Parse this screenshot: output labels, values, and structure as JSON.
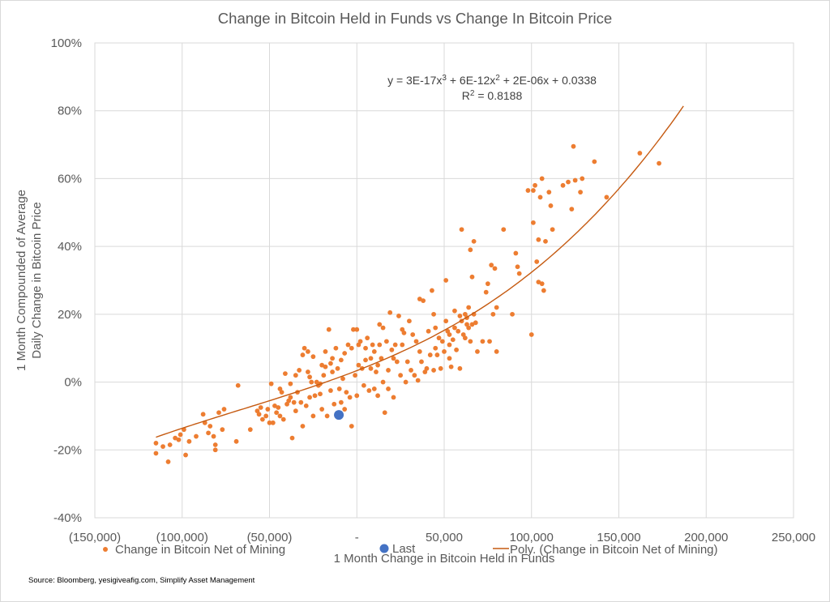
{
  "chart_data": {
    "type": "scatter",
    "title": "Change in Bitcoin Held in Funds vs Change In Bitcoin Price",
    "xlabel": "1 Month Change in Bitcoin Held in Funds",
    "ylabel_lines": [
      "1 Month Compounded of Average",
      "Daily Change in Bitcoin Price"
    ],
    "xlim": [
      -150000,
      250000
    ],
    "ylim": [
      -0.4,
      1.0
    ],
    "grid": true,
    "x_ticks": [
      {
        "value": -150000,
        "label": "(150,000)"
      },
      {
        "value": -100000,
        "label": "(100,000)"
      },
      {
        "value": -50000,
        "label": "(50,000)"
      },
      {
        "value": 0,
        "label": "-"
      },
      {
        "value": 50000,
        "label": "50,000"
      },
      {
        "value": 100000,
        "label": "100,000"
      },
      {
        "value": 150000,
        "label": "150,000"
      },
      {
        "value": 200000,
        "label": "200,000"
      },
      {
        "value": 250000,
        "label": "250,000"
      }
    ],
    "y_ticks": [
      {
        "value": 1.0,
        "label": "100%"
      },
      {
        "value": 0.8,
        "label": "80%"
      },
      {
        "value": 0.6,
        "label": "60%"
      },
      {
        "value": 0.4,
        "label": "40%"
      },
      {
        "value": 0.2,
        "label": "20%"
      },
      {
        "value": 0.0,
        "label": "0%"
      },
      {
        "value": -0.2,
        "label": "-20%"
      },
      {
        "value": -0.4,
        "label": "-40%"
      }
    ],
    "colors": {
      "series": "#ed7d31",
      "last": "#4472c4",
      "trend": "#c55a11"
    },
    "legend": {
      "placement": "bottom",
      "entries": [
        {
          "label": "Change in Bitcoin Net of Mining",
          "type": "marker",
          "color": "#ed7d31"
        },
        {
          "label": "Last",
          "type": "marker",
          "color": "#4472c4"
        },
        {
          "label": "Poly. (Change in Bitcoin Net of Mining)",
          "type": "line",
          "color": "#c55a11"
        }
      ]
    },
    "trendline": {
      "type": "poly3",
      "coefficients": [
        3e-17,
        6e-12,
        2e-06,
        0.0338
      ],
      "x_range": [
        -115000,
        187000
      ],
      "equation_label": "y = 3E-17x",
      "equation_parts": [
        "y = 3E-17x",
        "3",
        " + 6E-12x",
        "2",
        " + 2E-06x + 0.0338"
      ],
      "r2_parts": [
        "R",
        "2",
        " = 0.8188"
      ]
    },
    "last_point": {
      "name": "Last",
      "x": -10300,
      "y": -0.097
    },
    "series": [
      {
        "name": "Change in Bitcoin Net of Mining",
        "points": [
          [
            -115000,
            -0.18
          ],
          [
            -115000,
            -0.21
          ],
          [
            -111000,
            -0.19
          ],
          [
            -108000,
            -0.235
          ],
          [
            -107000,
            -0.185
          ],
          [
            -104000,
            -0.165
          ],
          [
            -102000,
            -0.17
          ],
          [
            -101000,
            -0.155
          ],
          [
            -99000,
            -0.14
          ],
          [
            -98000,
            -0.215
          ],
          [
            -96000,
            -0.175
          ],
          [
            -92000,
            -0.16
          ],
          [
            -88000,
            -0.095
          ],
          [
            -87000,
            -0.12
          ],
          [
            -85000,
            -0.15
          ],
          [
            -84000,
            -0.13
          ],
          [
            -82000,
            -0.16
          ],
          [
            -81000,
            -0.185
          ],
          [
            -81000,
            -0.2
          ],
          [
            -79000,
            -0.09
          ],
          [
            -77000,
            -0.14
          ],
          [
            -76000,
            -0.08
          ],
          [
            -69000,
            -0.175
          ],
          [
            -68000,
            -0.01
          ],
          [
            -61000,
            -0.14
          ],
          [
            -57000,
            -0.085
          ],
          [
            -55000,
            -0.075
          ],
          [
            -54000,
            -0.11
          ],
          [
            -52000,
            -0.1
          ],
          [
            -51000,
            -0.08
          ],
          [
            -50000,
            -0.12
          ],
          [
            -49000,
            -0.005
          ],
          [
            -48000,
            -0.12
          ],
          [
            -47000,
            -0.07
          ],
          [
            -46000,
            -0.09
          ],
          [
            -45000,
            -0.075
          ],
          [
            -44000,
            -0.1
          ],
          [
            -43000,
            -0.03
          ],
          [
            -42000,
            -0.11
          ],
          [
            -41000,
            0.025
          ],
          [
            -40000,
            -0.065
          ],
          [
            -39000,
            -0.055
          ],
          [
            -38000,
            -0.045
          ],
          [
            -37000,
            -0.165
          ],
          [
            -36000,
            -0.06
          ],
          [
            -35000,
            0.02
          ],
          [
            -35000,
            -0.085
          ],
          [
            -34000,
            -0.03
          ],
          [
            -33000,
            0.035
          ],
          [
            -32000,
            -0.06
          ],
          [
            -31000,
            -0.13
          ],
          [
            -31000,
            0.08
          ],
          [
            -30000,
            0.1
          ],
          [
            -29000,
            -0.07
          ],
          [
            -28000,
            0.09
          ],
          [
            -28000,
            0.03
          ],
          [
            -27000,
            -0.045
          ],
          [
            -26000,
            0.0
          ],
          [
            -25000,
            -0.1
          ],
          [
            -25000,
            0.075
          ],
          [
            -24000,
            -0.04
          ],
          [
            -23000,
            0.0
          ],
          [
            -22000,
            -0.01
          ],
          [
            -21000,
            -0.035
          ],
          [
            -20000,
            0.05
          ],
          [
            -20000,
            -0.08
          ],
          [
            -19000,
            0.02
          ],
          [
            -18000,
            0.09
          ],
          [
            -17000,
            -0.1
          ],
          [
            -16000,
            0.155
          ],
          [
            -15000,
            -0.025
          ],
          [
            -15000,
            0.055
          ],
          [
            -14000,
            0.03
          ],
          [
            -13000,
            -0.065
          ],
          [
            -12000,
            0.1
          ],
          [
            -11000,
            0.04
          ],
          [
            -10000,
            -0.02
          ],
          [
            -9000,
            0.065
          ],
          [
            -8000,
            0.01
          ],
          [
            -7000,
            0.085
          ],
          [
            -6000,
            -0.03
          ],
          [
            -5000,
            0.11
          ],
          [
            -4000,
            -0.045
          ],
          [
            -3000,
            0.1
          ],
          [
            -3000,
            -0.13
          ],
          [
            -2000,
            0.155
          ],
          [
            -1000,
            0.02
          ],
          [
            0,
            -0.04
          ],
          [
            0,
            0.155
          ],
          [
            1000,
            0.05
          ],
          [
            2000,
            0.12
          ],
          [
            3000,
            0.04
          ],
          [
            4000,
            -0.01
          ],
          [
            5000,
            0.065
          ],
          [
            5000,
            0.1
          ],
          [
            6000,
            0.13
          ],
          [
            7000,
            -0.025
          ],
          [
            8000,
            0.04
          ],
          [
            9000,
            0.11
          ],
          [
            10000,
            -0.02
          ],
          [
            10000,
            0.09
          ],
          [
            11000,
            0.03
          ],
          [
            12000,
            0.05
          ],
          [
            12000,
            -0.04
          ],
          [
            13000,
            0.17
          ],
          [
            13000,
            0.11
          ],
          [
            14000,
            0.07
          ],
          [
            15000,
            0.16
          ],
          [
            15000,
            0.0
          ],
          [
            16000,
            -0.09
          ],
          [
            17000,
            0.12
          ],
          [
            18000,
            -0.02
          ],
          [
            19000,
            0.205
          ],
          [
            20000,
            0.095
          ],
          [
            21000,
            0.07
          ],
          [
            21000,
            -0.045
          ],
          [
            22000,
            0.11
          ],
          [
            23000,
            0.06
          ],
          [
            24000,
            0.195
          ],
          [
            25000,
            0.02
          ],
          [
            26000,
            0.155
          ],
          [
            27000,
            0.145
          ],
          [
            28000,
            0.0
          ],
          [
            29000,
            0.06
          ],
          [
            30000,
            0.18
          ],
          [
            31000,
            0.035
          ],
          [
            32000,
            0.14
          ],
          [
            33000,
            0.02
          ],
          [
            35000,
            0.005
          ],
          [
            36000,
            0.245
          ],
          [
            36000,
            0.09
          ],
          [
            37000,
            0.06
          ],
          [
            38000,
            0.24
          ],
          [
            39000,
            0.03
          ],
          [
            40000,
            0.04
          ],
          [
            41000,
            0.15
          ],
          [
            42000,
            0.08
          ],
          [
            43000,
            0.27
          ],
          [
            44000,
            0.2
          ],
          [
            44000,
            0.035
          ],
          [
            45000,
            0.16
          ],
          [
            46000,
            0.08
          ],
          [
            47000,
            0.13
          ],
          [
            48000,
            0.04
          ],
          [
            49000,
            0.12
          ],
          [
            50000,
            0.09
          ],
          [
            51000,
            0.3
          ],
          [
            51000,
            0.18
          ],
          [
            52000,
            0.15
          ],
          [
            53000,
            0.11
          ],
          [
            53000,
            0.07
          ],
          [
            54000,
            0.045
          ],
          [
            55000,
            0.125
          ],
          [
            56000,
            0.21
          ],
          [
            56000,
            0.16
          ],
          [
            57000,
            0.095
          ],
          [
            58000,
            0.15
          ],
          [
            59000,
            0.195
          ],
          [
            59000,
            0.04
          ],
          [
            60000,
            0.45
          ],
          [
            60000,
            0.18
          ],
          [
            61000,
            0.14
          ],
          [
            62000,
            0.2
          ],
          [
            62000,
            0.13
          ],
          [
            63000,
            0.17
          ],
          [
            63000,
            0.19
          ],
          [
            64000,
            0.22
          ],
          [
            64000,
            0.16
          ],
          [
            65000,
            0.39
          ],
          [
            65000,
            0.12
          ],
          [
            66000,
            0.31
          ],
          [
            66000,
            0.17
          ],
          [
            67000,
            0.415
          ],
          [
            67000,
            0.2
          ],
          [
            68000,
            0.175
          ],
          [
            69000,
            0.09
          ],
          [
            72000,
            0.12
          ],
          [
            74000,
            0.265
          ],
          [
            75000,
            0.29
          ],
          [
            76000,
            0.12
          ],
          [
            77000,
            0.345
          ],
          [
            78000,
            0.2
          ],
          [
            79000,
            0.335
          ],
          [
            80000,
            0.09
          ],
          [
            80000,
            0.22
          ],
          [
            84000,
            0.45
          ],
          [
            89000,
            0.2
          ],
          [
            91000,
            0.38
          ],
          [
            92000,
            0.34
          ],
          [
            93000,
            0.32
          ],
          [
            98000,
            0.565
          ],
          [
            100000,
            0.14
          ],
          [
            101000,
            0.47
          ],
          [
            101000,
            0.565
          ],
          [
            102000,
            0.58
          ],
          [
            103000,
            0.355
          ],
          [
            104000,
            0.295
          ],
          [
            104000,
            0.42
          ],
          [
            105000,
            0.545
          ],
          [
            106000,
            0.6
          ],
          [
            106000,
            0.29
          ],
          [
            107000,
            0.27
          ],
          [
            108000,
            0.415
          ],
          [
            110000,
            0.56
          ],
          [
            111000,
            0.52
          ],
          [
            112000,
            0.45
          ],
          [
            118000,
            0.58
          ],
          [
            121000,
            0.59
          ],
          [
            123000,
            0.51
          ],
          [
            124000,
            0.695
          ],
          [
            125000,
            0.595
          ],
          [
            128000,
            0.56
          ],
          [
            129000,
            0.6
          ],
          [
            136000,
            0.65
          ],
          [
            143000,
            0.545
          ],
          [
            162000,
            0.675
          ],
          [
            173000,
            0.645
          ],
          [
            -9000,
            -0.06
          ],
          [
            -27000,
            0.015
          ],
          [
            -18000,
            0.045
          ],
          [
            8000,
            0.07
          ],
          [
            26000,
            0.11
          ],
          [
            -38000,
            -0.005
          ],
          [
            -44000,
            -0.02
          ],
          [
            -56000,
            -0.095
          ],
          [
            -7000,
            -0.08
          ],
          [
            1000,
            0.11
          ],
          [
            18000,
            0.035
          ],
          [
            45000,
            0.1
          ],
          [
            53000,
            0.14
          ],
          [
            34000,
            0.12
          ],
          [
            -14000,
            0.07
          ],
          [
            -21000,
            -0.005
          ]
        ]
      }
    ],
    "source": "Source: Bloomberg, yesigiveafig.com, Simplify Asset Management"
  }
}
